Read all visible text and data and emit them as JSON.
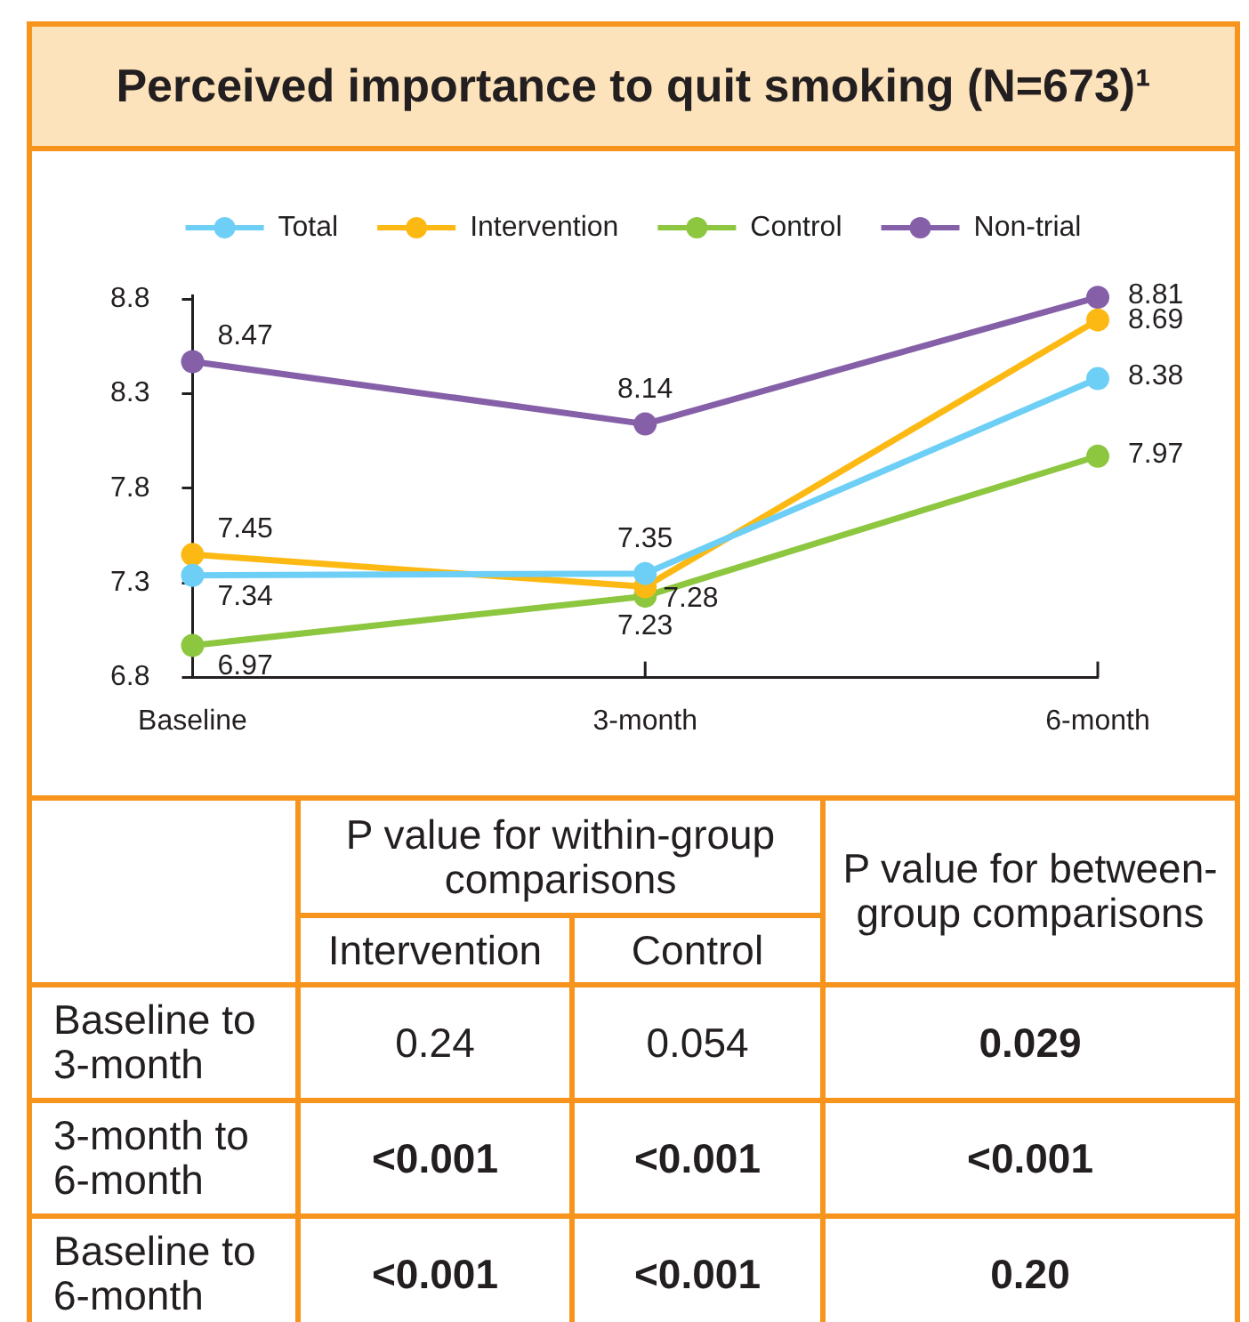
{
  "chart_data": [
    {
      "type": "line",
      "title": "Perceived importance to quit smoking (N=673)¹",
      "categories": [
        "Baseline",
        "3-month",
        "6-month"
      ],
      "series": [
        {
          "name": "Total",
          "color": "#6dcff6",
          "values": [
            7.34,
            7.35,
            8.38
          ]
        },
        {
          "name": "Intervention",
          "color": "#fdb913",
          "values": [
            7.45,
            7.28,
            8.69
          ]
        },
        {
          "name": "Control",
          "color": "#8dc63f",
          "values": [
            6.97,
            7.23,
            7.97
          ]
        },
        {
          "name": "Non-trial",
          "color": "#8560a8",
          "values": [
            8.47,
            8.14,
            8.81
          ]
        }
      ],
      "ylim": [
        6.8,
        8.82
      ],
      "yticks": [
        6.8,
        7.3,
        7.8,
        8.3,
        8.8
      ],
      "legend": "top",
      "marker": "circle",
      "data_labels": true
    },
    {
      "type": "other",
      "annotations": [
        "P value for within-group comparisons",
        "Intervention",
        "Control",
        "P value for between-group comparisons",
        "Baseline to 3-month",
        "0.24",
        "0.054",
        "0.029",
        "3-month to 6-month",
        "<0.001",
        "<0.001",
        "<0.001",
        "Baseline to 6-month",
        "<0.001",
        "<0.001",
        "0.20"
      ]
    }
  ]
}
